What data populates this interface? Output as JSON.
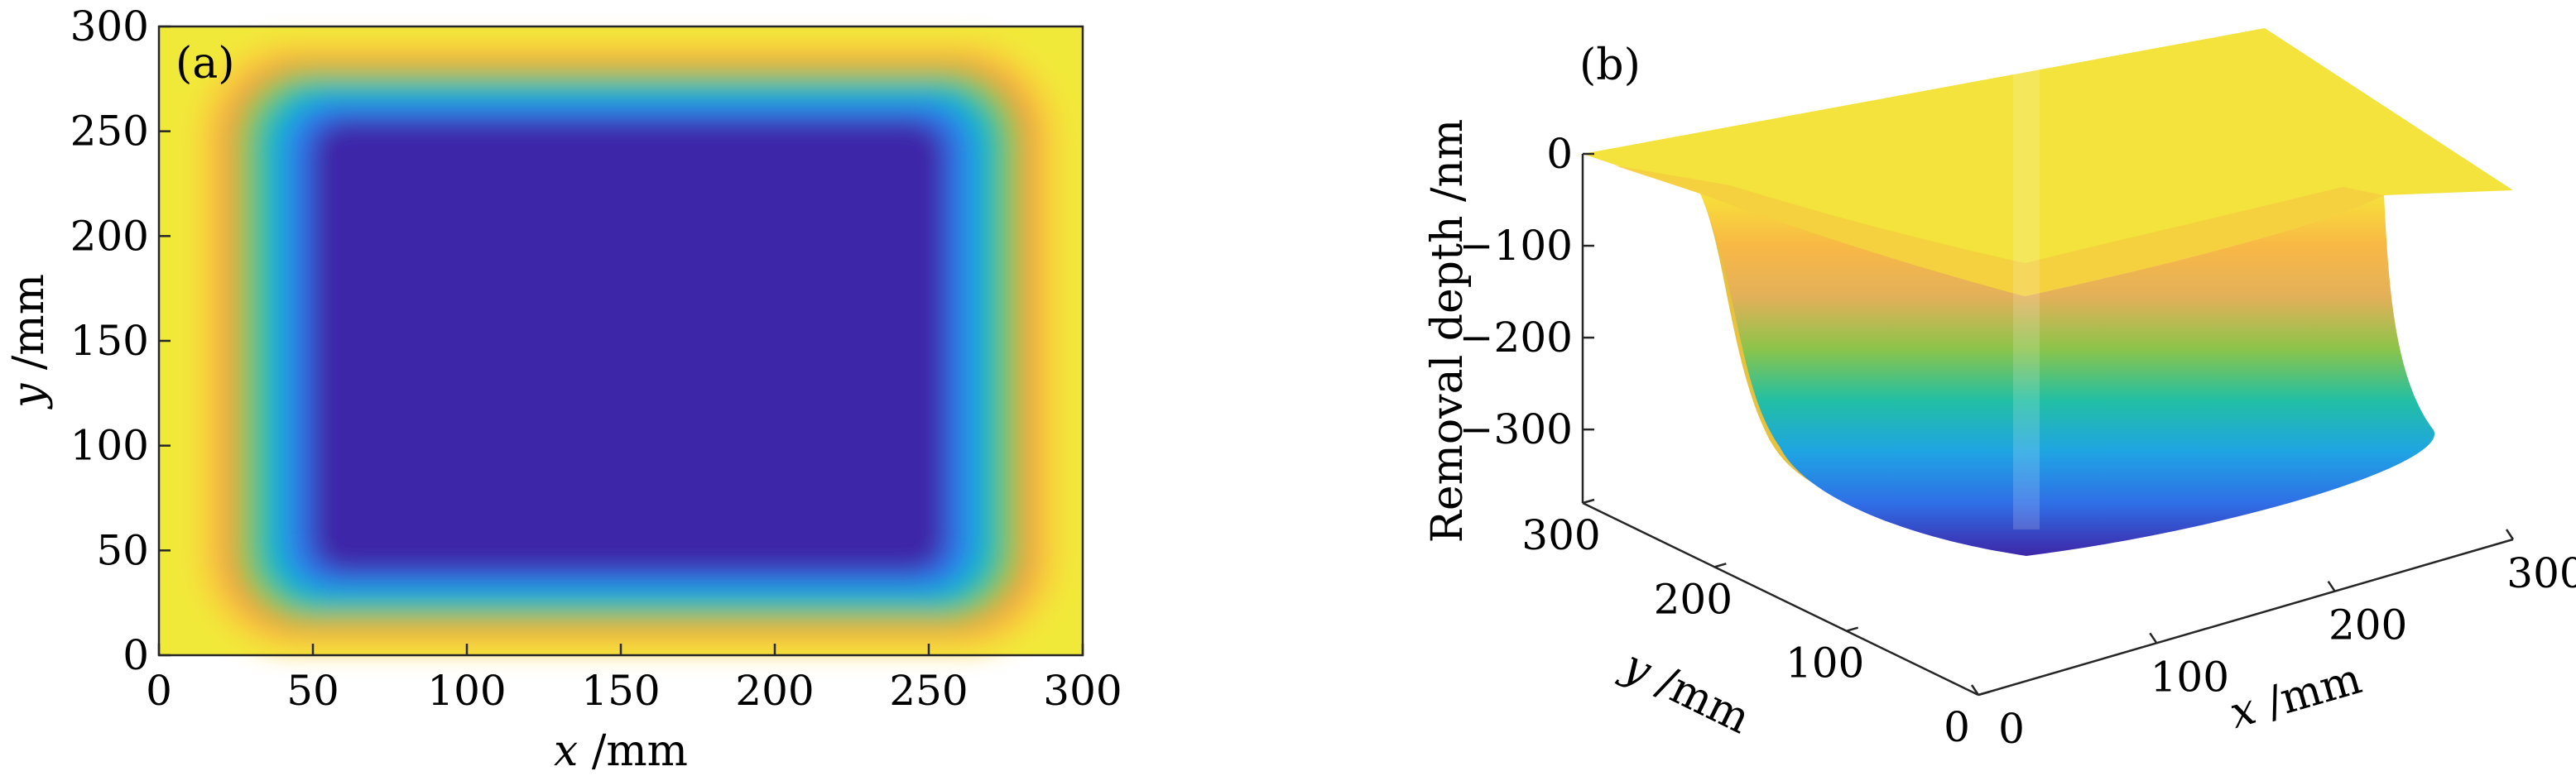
{
  "chart_data": [
    {
      "panel_label": "(a)",
      "type": "heatmap",
      "xlabel": {
        "var": "x",
        "unit": " /mm"
      },
      "ylabel": {
        "var": "y",
        "unit": " /mm"
      },
      "xlim": [
        0,
        300
      ],
      "ylim": [
        0,
        300
      ],
      "x_ticks": [
        0,
        50,
        100,
        150,
        200,
        250,
        300
      ],
      "y_ticks": [
        0,
        50,
        100,
        150,
        200,
        250,
        300
      ],
      "flat_region": {
        "x": [
          50,
          255
        ],
        "y": [
          40,
          255
        ]
      },
      "colormap": [
        "#3e26a8",
        "#2f6ee6",
        "#1fa4e3",
        "#23bfa4",
        "#8cc44a",
        "#f2a444",
        "#f9d13a",
        "#f1e93a"
      ],
      "grid": false
    },
    {
      "panel_label": "(b)",
      "type": "surface",
      "zlabel": "Removal depth /nm",
      "xlabel": {
        "var": "x",
        "unit": " /mm"
      },
      "ylabel": {
        "var": "y",
        "unit": " /mm"
      },
      "x_ticks": [
        0,
        100,
        200,
        300
      ],
      "y_ticks": [
        0,
        100,
        200,
        300
      ],
      "z_ticks": [
        "0",
        "−100",
        "−200",
        "−300"
      ],
      "z_values": [
        0,
        -100,
        -200,
        -300
      ],
      "zlim": [
        -380,
        0
      ],
      "bottom_depth": -380,
      "flat_region": {
        "x": [
          50,
          255
        ],
        "y": [
          40,
          255
        ]
      },
      "grid": false
    }
  ]
}
